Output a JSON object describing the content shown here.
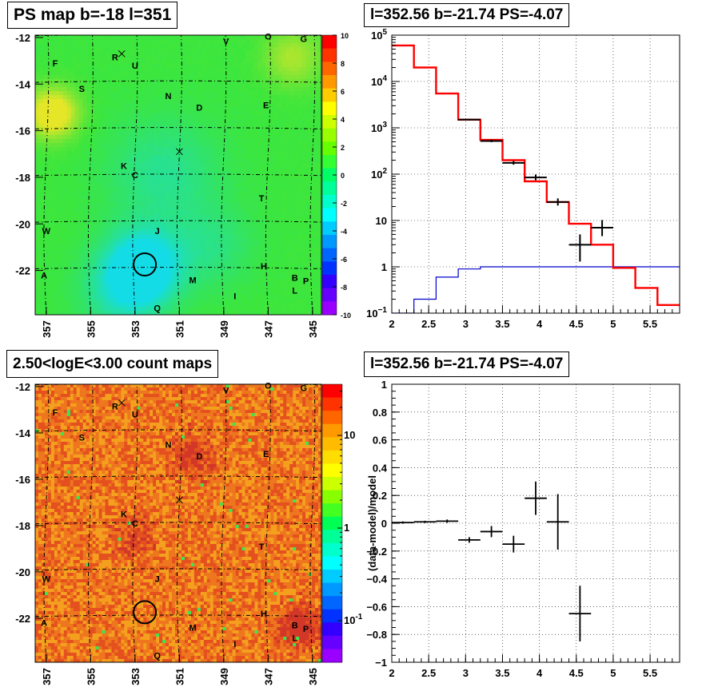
{
  "panels": {
    "tl": {
      "title": "PS map b=-18 l=351"
    },
    "tr": {
      "title": "l=352.56 b=-21.74 PS=-4.07"
    },
    "bl": {
      "title": "2.50<logE<3.00 count maps"
    },
    "br": {
      "title": "l=352.56 b=-21.74 PS=-4.07"
    }
  },
  "colors": {
    "red": "#ff0000",
    "blue": "#0000cc",
    "black": "#000000",
    "tl_base": "#3fe63f",
    "bl_base": "#f07a28"
  },
  "chart_data": [
    {
      "id": "ps-map",
      "type": "heatmap",
      "title": "PS map b=-18 l=351",
      "x_ticks": [
        "357",
        "355",
        "353",
        "351",
        "349",
        "347",
        "345"
      ],
      "y_ticks": [
        "-12",
        "-14",
        "-16",
        "-18",
        "-20",
        "-22"
      ],
      "xlim": [
        357.5,
        344.6
      ],
      "ylim": [
        -23.9,
        -11.9
      ],
      "colorbar": {
        "scale": "linear",
        "min": -10,
        "max": 10,
        "ticks": [
          "10",
          "8",
          "6",
          "4",
          "2",
          "0",
          "-2",
          "-4",
          "-6",
          "-8",
          "-10"
        ]
      },
      "source_labels": [
        {
          "t": "O",
          "l": 347.0,
          "b": -11.95
        },
        {
          "t": "V",
          "l": 348.9,
          "b": -12.15
        },
        {
          "t": "G",
          "l": 345.4,
          "b": -12.05
        },
        {
          "t": "F",
          "l": 356.6,
          "b": -13.1
        },
        {
          "t": "R",
          "l": 353.9,
          "b": -12.85
        },
        {
          "t": "U",
          "l": 353.0,
          "b": -13.2
        },
        {
          "t": "S",
          "l": 355.4,
          "b": -14.2
        },
        {
          "t": "N",
          "l": 351.5,
          "b": -14.5
        },
        {
          "t": "D",
          "l": 350.1,
          "b": -15.0
        },
        {
          "t": "E",
          "l": 347.1,
          "b": -14.9
        },
        {
          "t": "K",
          "l": 353.5,
          "b": -17.5
        },
        {
          "t": "C",
          "l": 353.0,
          "b": -17.9
        },
        {
          "t": "T",
          "l": 347.3,
          "b": -18.9
        },
        {
          "t": "J",
          "l": 352.0,
          "b": -20.3
        },
        {
          "t": "W",
          "l": 357.0,
          "b": -20.3
        },
        {
          "t": "H",
          "l": 347.2,
          "b": -21.8
        },
        {
          "t": "A",
          "l": 357.1,
          "b": -22.2
        },
        {
          "t": "M",
          "l": 350.4,
          "b": -22.4
        },
        {
          "t": "B",
          "l": 345.8,
          "b": -22.3
        },
        {
          "t": "P",
          "l": 345.3,
          "b": -22.45
        },
        {
          "t": "L",
          "l": 345.8,
          "b": -22.85
        },
        {
          "t": "I",
          "l": 348.5,
          "b": -23.1
        },
        {
          "t": "Q",
          "l": 352.0,
          "b": -23.6
        }
      ],
      "cross_markers": [
        {
          "l": 353.6,
          "b": -12.7
        },
        {
          "l": 351.0,
          "b": -16.9
        }
      ],
      "circle": {
        "l": 352.56,
        "b": -21.74
      }
    },
    {
      "id": "spectrum",
      "type": "line",
      "title": "l=352.56 b=-21.74 PS=-4.07",
      "yscale": "log",
      "xlim": [
        2.0,
        5.9
      ],
      "ylim": [
        0.1,
        100000
      ],
      "x_ticks": [
        "2",
        "2.5",
        "3",
        "3.5",
        "4",
        "4.5",
        "5",
        "5.5"
      ],
      "y_ticks": [
        {
          "v": 0.1,
          "base": "10",
          "exp": "−1"
        },
        {
          "v": 1,
          "base": "1",
          "exp": ""
        },
        {
          "v": 10,
          "base": "10",
          "exp": ""
        },
        {
          "v": 100,
          "base": "10",
          "exp": "2"
        },
        {
          "v": 1000,
          "base": "10",
          "exp": "3"
        },
        {
          "v": 10000,
          "base": "10",
          "exp": "4"
        },
        {
          "v": 100000,
          "base": "10",
          "exp": "5"
        }
      ],
      "bin_edges": [
        2.0,
        2.3,
        2.6,
        2.9,
        3.2,
        3.5,
        3.8,
        4.1,
        4.4,
        4.7,
        5.0,
        5.3,
        5.6,
        5.9
      ],
      "series": [
        {
          "kind": "model-total",
          "color": "#ff0000",
          "values": [
            60000,
            20000,
            5500,
            1500,
            550,
            200,
            70,
            25,
            8.5,
            3.0,
            0.95,
            0.35,
            0.15
          ]
        },
        {
          "kind": "model-source",
          "color": "#0000cc",
          "values": [
            0.1,
            0.2,
            0.6,
            0.9,
            1.0,
            1.0,
            1.0,
            1.0,
            1.0,
            1.0,
            1.0,
            1.0,
            1.0
          ]
        },
        {
          "kind": "data",
          "color": "#000000",
          "points": [
            {
              "x": 3.05,
              "y": 1500,
              "lo": 1450,
              "hi": 1560
            },
            {
              "x": 3.35,
              "y": 520,
              "lo": 490,
              "hi": 555
            },
            {
              "x": 3.65,
              "y": 175,
              "lo": 160,
              "hi": 192
            },
            {
              "x": 3.95,
              "y": 85,
              "lo": 74,
              "hi": 98
            },
            {
              "x": 4.25,
              "y": 25,
              "lo": 21,
              "hi": 30
            },
            {
              "x": 4.55,
              "y": 3.0,
              "lo": 1.3,
              "hi": 5.0
            },
            {
              "x": 4.85,
              "y": 7.0,
              "lo": 4.6,
              "hi": 10.2
            }
          ]
        }
      ]
    },
    {
      "id": "count-map",
      "type": "heatmap",
      "title": "2.50<logE<3.00 count maps",
      "x_ticks": [
        "357",
        "355",
        "353",
        "351",
        "349",
        "347",
        "345"
      ],
      "y_ticks": [
        "-12",
        "-14",
        "-16",
        "-18",
        "-20",
        "-22"
      ],
      "xlim": [
        357.5,
        344.6
      ],
      "ylim": [
        -23.9,
        -11.9
      ],
      "colorbar": {
        "scale": "log",
        "ticks": [
          {
            "v": 10,
            "base": "10",
            "exp": ""
          },
          {
            "v": 1,
            "base": "1",
            "exp": ""
          },
          {
            "v": 0.1,
            "base": "10",
            "exp": "-1"
          }
        ]
      }
    },
    {
      "id": "residual",
      "type": "scatter",
      "title": "l=352.56 b=-21.74 PS=-4.07",
      "ylabel": "(data-model)/model",
      "xlim": [
        2.0,
        5.9
      ],
      "ylim": [
        -1.0,
        1.0
      ],
      "x_ticks": [
        "2",
        "2.5",
        "3",
        "3.5",
        "4",
        "4.5",
        "5",
        "5.5"
      ],
      "y_ticks": [
        "1",
        "0.8",
        "0.6",
        "0.4",
        "0.2",
        "0",
        "-0.2",
        "-0.4",
        "-0.6",
        "-0.8",
        "-1"
      ],
      "points": [
        {
          "x": 2.15,
          "y": 0.005,
          "xerr": 0.15,
          "yerr": 0.008
        },
        {
          "x": 2.45,
          "y": 0.01,
          "xerr": 0.15,
          "yerr": 0.008
        },
        {
          "x": 2.75,
          "y": 0.015,
          "xerr": 0.15,
          "yerr": 0.012
        },
        {
          "x": 3.05,
          "y": -0.12,
          "xerr": 0.15,
          "yerr": 0.02
        },
        {
          "x": 3.35,
          "y": -0.06,
          "xerr": 0.15,
          "yerr": 0.04
        },
        {
          "x": 3.65,
          "y": -0.15,
          "xerr": 0.15,
          "yerr": 0.06
        },
        {
          "x": 3.95,
          "y": 0.18,
          "xerr": 0.15,
          "yerr": 0.12
        },
        {
          "x": 4.25,
          "y": 0.01,
          "xerr": 0.15,
          "yerr": 0.2
        },
        {
          "x": 4.55,
          "y": -0.65,
          "xerr": 0.15,
          "yerr": 0.2
        }
      ]
    }
  ]
}
